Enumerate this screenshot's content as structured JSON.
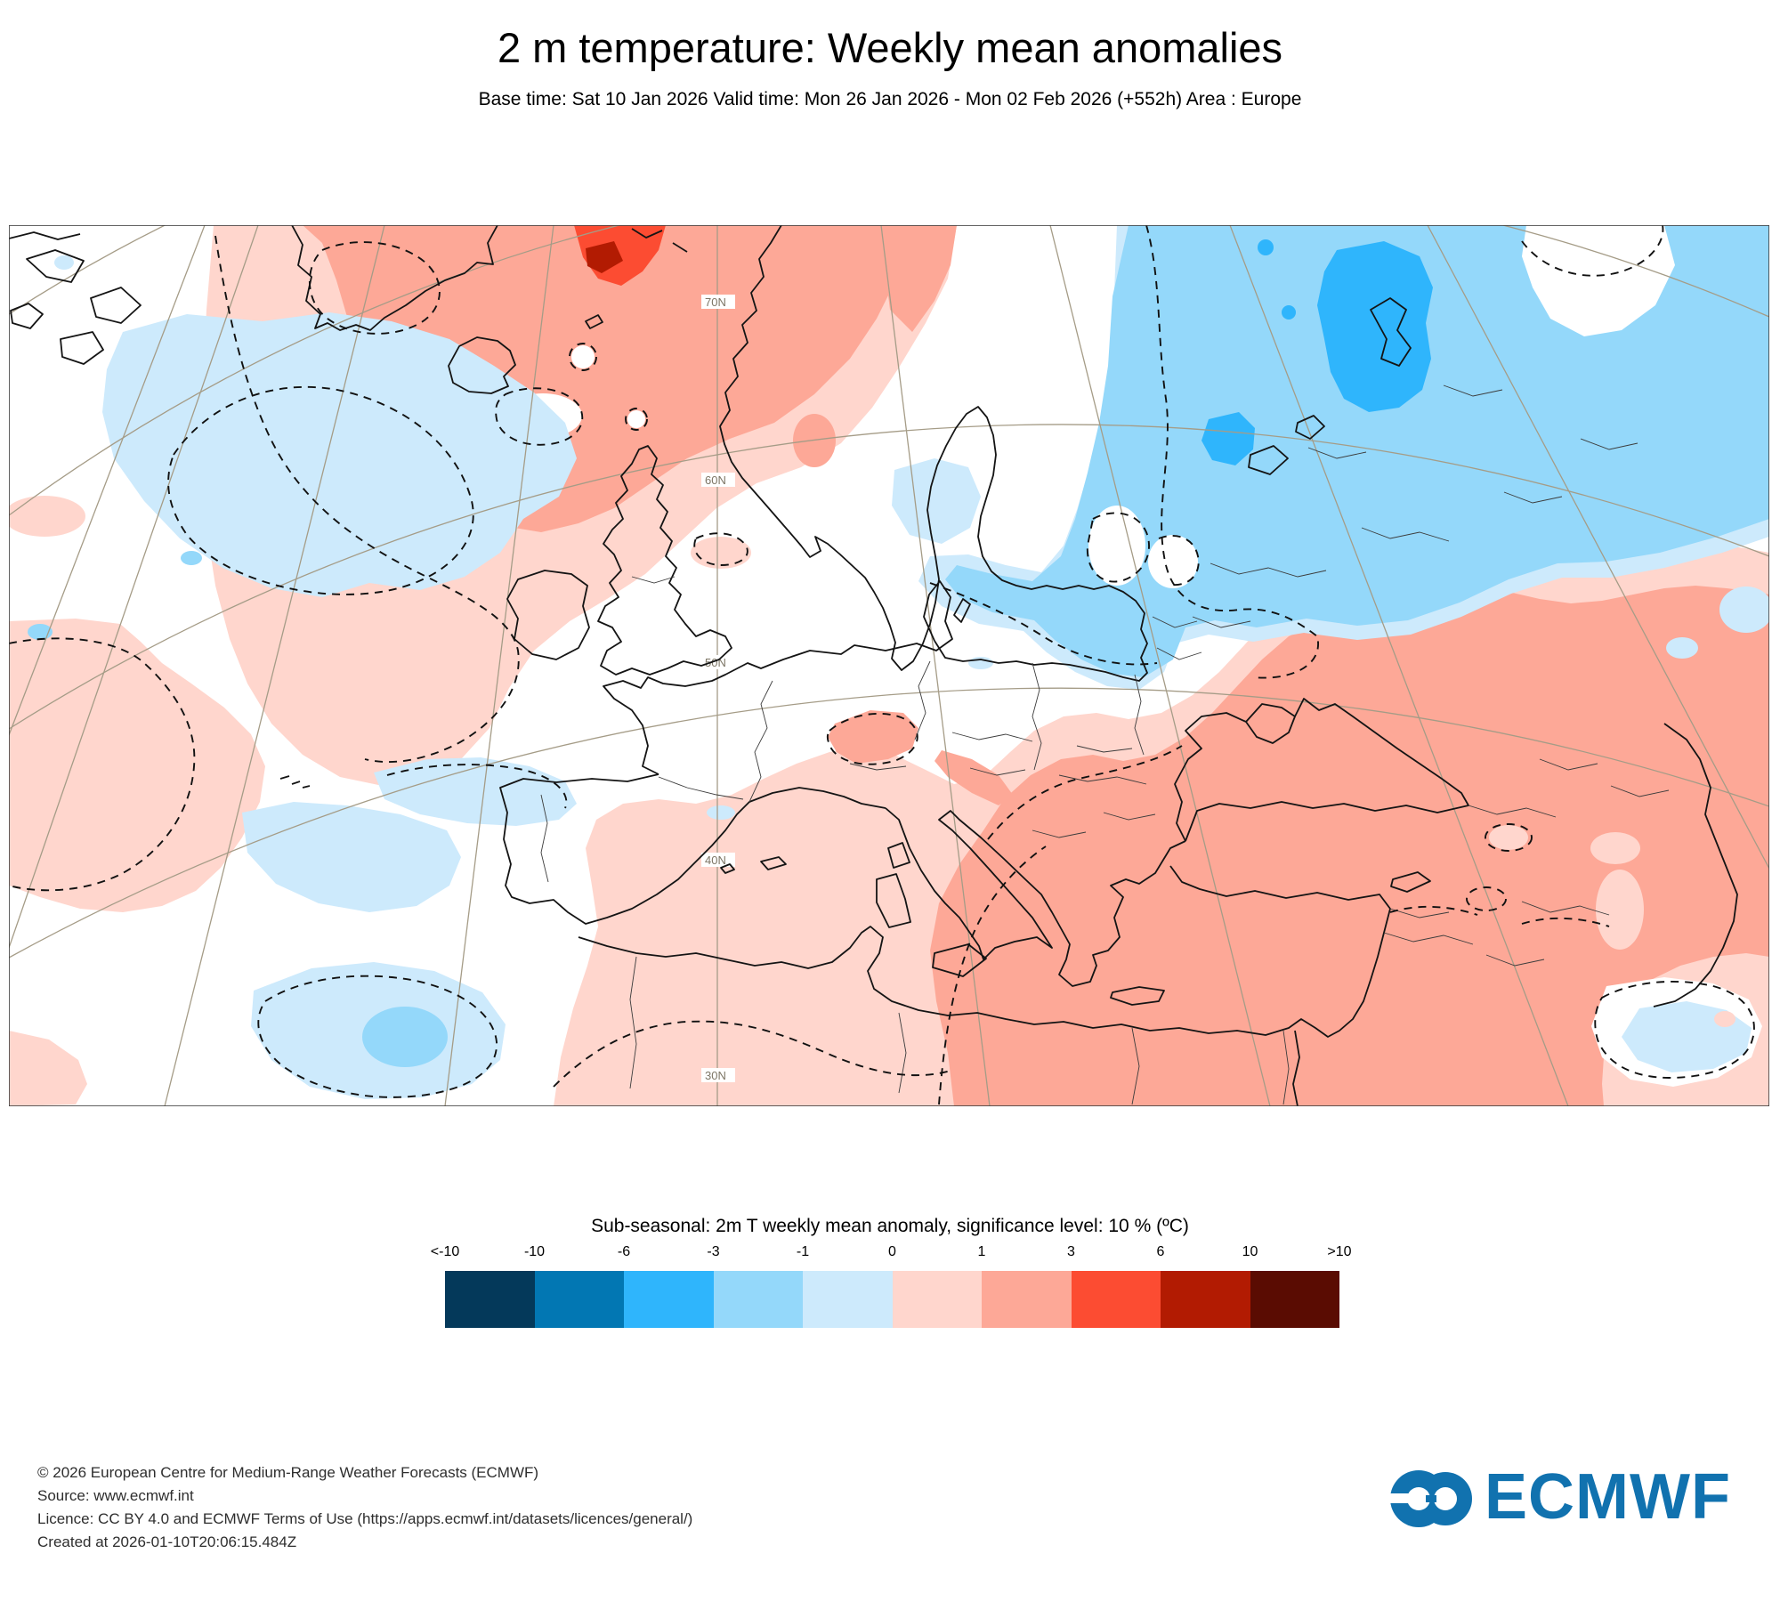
{
  "header": {
    "title": "2 m temperature: Weekly mean anomalies",
    "subtitle": "Base time: Sat 10 Jan 2026 Valid time: Mon 26 Jan 2026 - Mon 02 Feb 2026 (+552h) Area : Europe"
  },
  "map": {
    "graticule_labels": [
      "70N",
      "60N",
      "50N",
      "40N",
      "30N"
    ],
    "anomaly_regions": [
      {
        "area": "North Atlantic / Greenland / Iceland / northern Scandinavia",
        "anomaly": "warm, +1 to +6 C, local > +6 C spot north of Norway"
      },
      {
        "area": "Northeast Europe / Russia / Baltic states",
        "anomaly": "cold, -1 to -3 C, cores -3 to -6 C near White Sea"
      },
      {
        "area": "Western Atlantic off Iberia and near Canary Islands",
        "anomaly": "slightly cold, 0 to -1 C"
      },
      {
        "area": "Central / Western Europe, UK, Iberia, Finland",
        "anomaly": "near normal (white, not significant)"
      },
      {
        "area": "Mediterranean, Balkans, Turkey, North Africa, Middle East",
        "anomaly": "warm, +1 to +3 C"
      },
      {
        "area": "South Caspian pocket",
        "anomaly": "near normal to slightly cold"
      }
    ]
  },
  "legend": {
    "title": "Sub-seasonal: 2m T weekly mean anomaly, significance level: 10 % (ºC)",
    "ticks": [
      "<-10",
      "-10",
      "-6",
      "-3",
      "-1",
      "0",
      "1",
      "3",
      "6",
      "10",
      ">10"
    ],
    "colors": [
      "#04395a",
      "#0277b3",
      "#2fb5fc",
      "#94d8fa",
      "#cdeafc",
      "#ffd6cd",
      "#fda897",
      "#fc4c32",
      "#b21b02",
      "#5a0c02"
    ]
  },
  "footer": {
    "lines": [
      "© 2026 European Centre for Medium-Range Weather Forecasts (ECMWF)",
      "Source: www.ecmwf.int",
      "Licence: CC BY 4.0 and ECMWF Terms of Use (https://apps.ecmwf.int/datasets/licences/general/)",
      "Created at 2026-01-10T20:06:15.484Z"
    ]
  },
  "logo": {
    "text": "ECMWF",
    "color": "#1172af"
  }
}
